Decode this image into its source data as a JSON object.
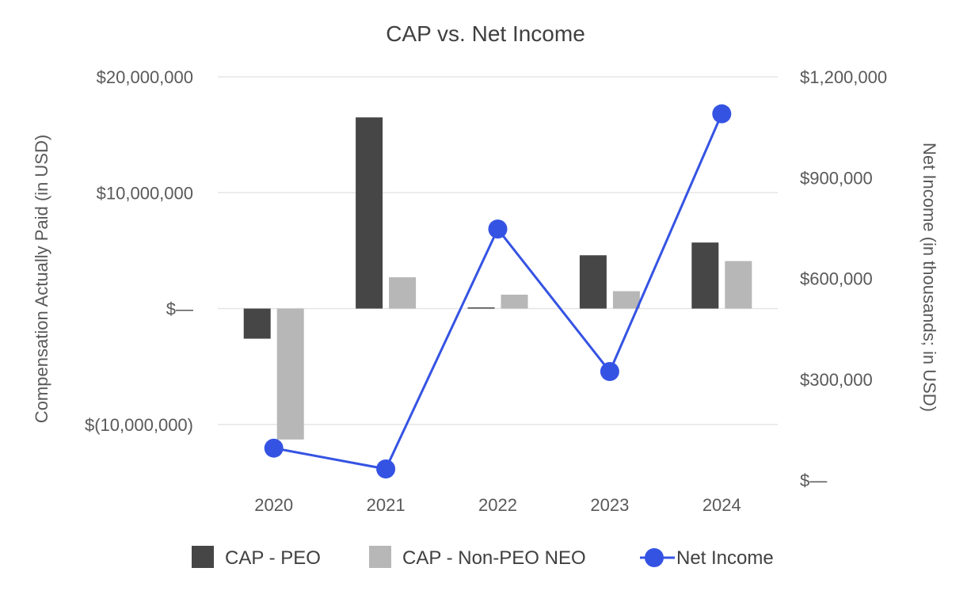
{
  "chart_data": {
    "type": "bar+line",
    "title": "CAP vs. Net Income",
    "categories": [
      "2020",
      "2021",
      "2022",
      "2023",
      "2024"
    ],
    "left_axis": {
      "label": "Compensation Actually Paid (in USD)",
      "range": [
        -14800000,
        20000000
      ],
      "ticks": [
        20000000,
        10000000,
        0,
        -10000000
      ],
      "tick_labels": [
        "$20,000,000",
        "$10,000,000",
        "$—",
        "$(10,000,000)"
      ]
    },
    "right_axis": {
      "label": "Net Income (in thousands; in USD)",
      "range": [
        0,
        1200000
      ],
      "ticks": [
        1200000,
        900000,
        600000,
        300000,
        0
      ],
      "tick_labels": [
        "$1,200,000",
        "$900,000",
        "$600,000",
        "$300,000",
        "$—"
      ]
    },
    "series": [
      {
        "name": "CAP - PEO",
        "type": "bar",
        "axis": "left",
        "color": "#464646",
        "values": [
          -2600000,
          16500000,
          100000,
          4600000,
          5700000
        ]
      },
      {
        "name": "CAP - Non-PEO NEO",
        "type": "bar",
        "axis": "left",
        "color": "#b7b7b7",
        "values": [
          -11300000,
          2700000,
          1200000,
          1500000,
          4100000
        ]
      },
      {
        "name": "Net Income",
        "type": "line",
        "axis": "right",
        "color": "#3553e3",
        "values": [
          95000,
          33000,
          747000,
          323000,
          1090000
        ]
      }
    ],
    "grid": true,
    "legend_position": "bottom"
  }
}
